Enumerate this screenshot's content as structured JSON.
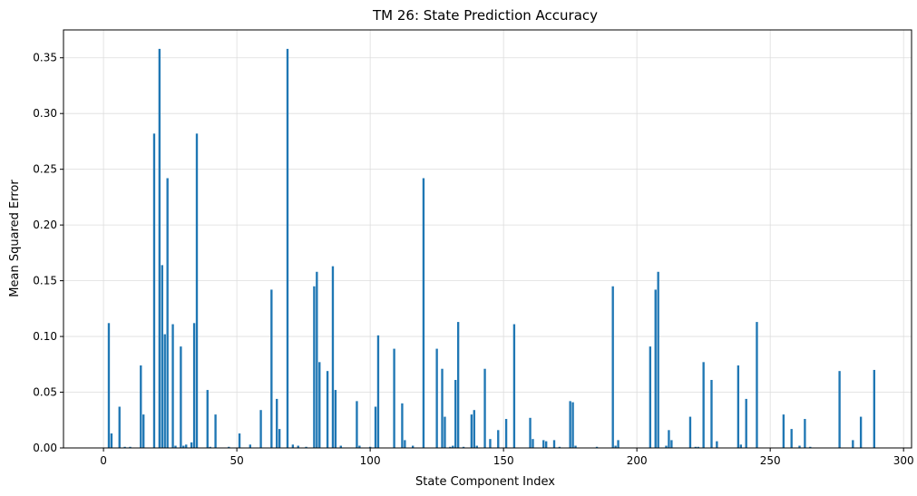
{
  "chart_data": {
    "type": "bar",
    "title": "TM 26: State Prediction Accuracy",
    "xlabel": "State Component Index",
    "ylabel": "Mean Squared Error",
    "xlim": [
      -15,
      303
    ],
    "ylim": [
      0,
      0.375
    ],
    "xticks": [
      0,
      50,
      100,
      150,
      200,
      250,
      300
    ],
    "yticks": [
      "0.00",
      "0.05",
      "0.10",
      "0.15",
      "0.20",
      "0.25",
      "0.30",
      "0.35"
    ],
    "grid": true,
    "bar_color": "#1f77b4",
    "bars": [
      {
        "x": 2,
        "y": 0.112
      },
      {
        "x": 3,
        "y": 0.013
      },
      {
        "x": 6,
        "y": 0.037
      },
      {
        "x": 8,
        "y": 0.001
      },
      {
        "x": 10,
        "y": 0.001
      },
      {
        "x": 14,
        "y": 0.074
      },
      {
        "x": 15,
        "y": 0.03
      },
      {
        "x": 19,
        "y": 0.282
      },
      {
        "x": 21,
        "y": 0.358
      },
      {
        "x": 22,
        "y": 0.164
      },
      {
        "x": 23,
        "y": 0.102
      },
      {
        "x": 24,
        "y": 0.242
      },
      {
        "x": 26,
        "y": 0.111
      },
      {
        "x": 27,
        "y": 0.002
      },
      {
        "x": 29,
        "y": 0.091
      },
      {
        "x": 30,
        "y": 0.002
      },
      {
        "x": 31,
        "y": 0.003
      },
      {
        "x": 33,
        "y": 0.005
      },
      {
        "x": 34,
        "y": 0.112
      },
      {
        "x": 35,
        "y": 0.282
      },
      {
        "x": 39,
        "y": 0.052
      },
      {
        "x": 40,
        "y": 0.001
      },
      {
        "x": 42,
        "y": 0.03
      },
      {
        "x": 47,
        "y": 0.001
      },
      {
        "x": 51,
        "y": 0.013
      },
      {
        "x": 55,
        "y": 0.003
      },
      {
        "x": 59,
        "y": 0.034
      },
      {
        "x": 63,
        "y": 0.142
      },
      {
        "x": 65,
        "y": 0.044
      },
      {
        "x": 66,
        "y": 0.017
      },
      {
        "x": 69,
        "y": 0.358
      },
      {
        "x": 71,
        "y": 0.003
      },
      {
        "x": 73,
        "y": 0.002
      },
      {
        "x": 76,
        "y": 0.001
      },
      {
        "x": 79,
        "y": 0.145
      },
      {
        "x": 80,
        "y": 0.158
      },
      {
        "x": 81,
        "y": 0.077
      },
      {
        "x": 84,
        "y": 0.069
      },
      {
        "x": 86,
        "y": 0.163
      },
      {
        "x": 87,
        "y": 0.052
      },
      {
        "x": 89,
        "y": 0.002
      },
      {
        "x": 95,
        "y": 0.042
      },
      {
        "x": 96,
        "y": 0.002
      },
      {
        "x": 100,
        "y": 0.001
      },
      {
        "x": 102,
        "y": 0.037
      },
      {
        "x": 103,
        "y": 0.101
      },
      {
        "x": 109,
        "y": 0.089
      },
      {
        "x": 112,
        "y": 0.04
      },
      {
        "x": 113,
        "y": 0.007
      },
      {
        "x": 116,
        "y": 0.002
      },
      {
        "x": 120,
        "y": 0.242
      },
      {
        "x": 125,
        "y": 0.089
      },
      {
        "x": 127,
        "y": 0.071
      },
      {
        "x": 128,
        "y": 0.028
      },
      {
        "x": 130,
        "y": 0.001
      },
      {
        "x": 131,
        "y": 0.002
      },
      {
        "x": 132,
        "y": 0.061
      },
      {
        "x": 133,
        "y": 0.113
      },
      {
        "x": 135,
        "y": 0.001
      },
      {
        "x": 138,
        "y": 0.03
      },
      {
        "x": 139,
        "y": 0.034
      },
      {
        "x": 140,
        "y": 0.002
      },
      {
        "x": 143,
        "y": 0.071
      },
      {
        "x": 145,
        "y": 0.008
      },
      {
        "x": 148,
        "y": 0.016
      },
      {
        "x": 151,
        "y": 0.026
      },
      {
        "x": 154,
        "y": 0.111
      },
      {
        "x": 160,
        "y": 0.027
      },
      {
        "x": 161,
        "y": 0.008
      },
      {
        "x": 165,
        "y": 0.007
      },
      {
        "x": 166,
        "y": 0.006
      },
      {
        "x": 169,
        "y": 0.007
      },
      {
        "x": 171,
        "y": 0.001
      },
      {
        "x": 175,
        "y": 0.042
      },
      {
        "x": 176,
        "y": 0.041
      },
      {
        "x": 177,
        "y": 0.002
      },
      {
        "x": 185,
        "y": 0.001
      },
      {
        "x": 191,
        "y": 0.145
      },
      {
        "x": 192,
        "y": 0.002
      },
      {
        "x": 193,
        "y": 0.007
      },
      {
        "x": 205,
        "y": 0.091
      },
      {
        "x": 207,
        "y": 0.142
      },
      {
        "x": 208,
        "y": 0.158
      },
      {
        "x": 211,
        "y": 0.002
      },
      {
        "x": 212,
        "y": 0.016
      },
      {
        "x": 213,
        "y": 0.007
      },
      {
        "x": 220,
        "y": 0.028
      },
      {
        "x": 222,
        "y": 0.001
      },
      {
        "x": 223,
        "y": 0.001
      },
      {
        "x": 225,
        "y": 0.077
      },
      {
        "x": 228,
        "y": 0.061
      },
      {
        "x": 230,
        "y": 0.006
      },
      {
        "x": 238,
        "y": 0.074
      },
      {
        "x": 239,
        "y": 0.003
      },
      {
        "x": 241,
        "y": 0.044
      },
      {
        "x": 245,
        "y": 0.113
      },
      {
        "x": 255,
        "y": 0.03
      },
      {
        "x": 258,
        "y": 0.017
      },
      {
        "x": 261,
        "y": 0.002
      },
      {
        "x": 263,
        "y": 0.026
      },
      {
        "x": 265,
        "y": 0.001
      },
      {
        "x": 276,
        "y": 0.069
      },
      {
        "x": 281,
        "y": 0.007
      },
      {
        "x": 284,
        "y": 0.028
      },
      {
        "x": 289,
        "y": 0.07
      }
    ]
  }
}
